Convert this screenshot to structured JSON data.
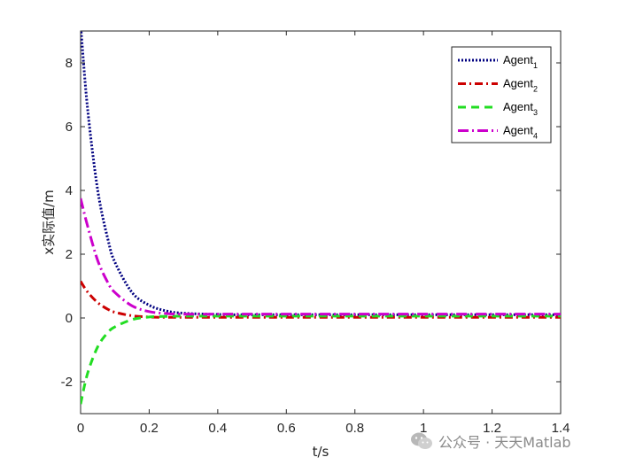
{
  "chart_data": {
    "type": "line",
    "title": "",
    "xlabel": "t/s",
    "ylabel": "x实际值/m",
    "xlim": [
      0,
      1.4
    ],
    "ylim": [
      -3,
      9
    ],
    "xticks": [
      "0",
      "0.2",
      "0.4",
      "0.6",
      "0.8",
      "1",
      "1.2",
      "1.4"
    ],
    "yticks": [
      "-2",
      "0",
      "2",
      "4",
      "6",
      "8"
    ],
    "grid": false,
    "legend_position": "top-right",
    "series": [
      {
        "name": "Agent",
        "subscript": "1",
        "color": "#000080",
        "dash": "dotted",
        "x": [
          0,
          0.02,
          0.05,
          0.08,
          0.1,
          0.15,
          0.2,
          0.25,
          0.3,
          0.4,
          0.5,
          0.7,
          1.0,
          1.4
        ],
        "y": [
          9.2,
          6.6,
          4.0,
          2.45,
          1.75,
          0.8,
          0.4,
          0.22,
          0.15,
          0.11,
          0.1,
          0.1,
          0.1,
          0.1
        ]
      },
      {
        "name": "Agent",
        "subscript": "2",
        "color": "#cc0000",
        "dash": "dashdot",
        "x": [
          0,
          0.02,
          0.05,
          0.08,
          0.1,
          0.15,
          0.2,
          0.25,
          0.3,
          0.4,
          0.5,
          0.7,
          1.0,
          1.4
        ],
        "y": [
          1.15,
          0.82,
          0.48,
          0.27,
          0.18,
          0.07,
          0.03,
          0.02,
          0.02,
          0.02,
          0.02,
          0.02,
          0.02,
          0.02
        ]
      },
      {
        "name": "Agent",
        "subscript": "3",
        "color": "#22dd22",
        "dash": "dashed",
        "x": [
          0,
          0.02,
          0.05,
          0.08,
          0.1,
          0.15,
          0.2,
          0.25,
          0.3,
          0.4,
          0.5,
          0.7,
          1.0,
          1.4
        ],
        "y": [
          -2.7,
          -1.75,
          -0.9,
          -0.45,
          -0.28,
          -0.05,
          0.03,
          0.05,
          0.06,
          0.06,
          0.06,
          0.06,
          0.06,
          0.06
        ]
      },
      {
        "name": "Agent",
        "subscript": "4",
        "color": "#cc00cc",
        "dash": "longdashdot",
        "x": [
          0,
          0.02,
          0.05,
          0.08,
          0.1,
          0.15,
          0.2,
          0.25,
          0.3,
          0.4,
          0.5,
          0.7,
          1.0,
          1.4
        ],
        "y": [
          3.75,
          2.9,
          1.8,
          1.1,
          0.8,
          0.38,
          0.2,
          0.14,
          0.12,
          0.12,
          0.12,
          0.12,
          0.12,
          0.12
        ]
      }
    ]
  },
  "watermark": {
    "text": "公众号 · 天天Matlab"
  }
}
